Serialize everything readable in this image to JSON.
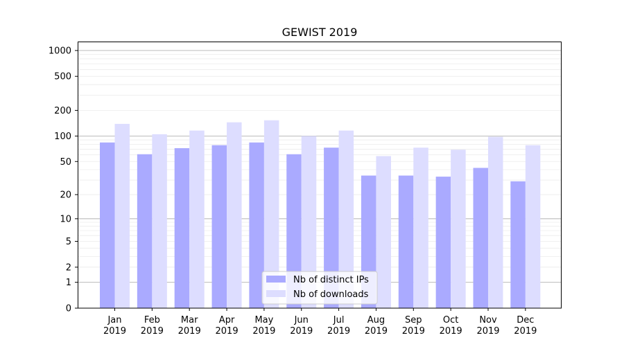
{
  "chart_data": {
    "type": "bar",
    "title": "GEWIST 2019",
    "xlabel": "",
    "ylabel": "",
    "yscale": "log(y+1)",
    "ylim": [
      0,
      1200
    ],
    "yticks": [
      0,
      1,
      2,
      5,
      10,
      20,
      50,
      100,
      200,
      500,
      1000
    ],
    "grid": true,
    "legend_position": "bottom-center",
    "categories": [
      "Jan\n2019",
      "Feb\n2019",
      "Mar\n2019",
      "Apr\n2019",
      "May\n2019",
      "Jun\n2019",
      "Jul\n2019",
      "Aug\n2019",
      "Sep\n2019",
      "Oct\n2019",
      "Nov\n2019",
      "Dec\n2019"
    ],
    "series": [
      {
        "name": "Nb of distinct IPs",
        "color": "#aaaaff",
        "values": [
          84,
          61,
          72,
          78,
          84,
          61,
          73,
          34,
          34,
          33,
          42,
          29
        ]
      },
      {
        "name": "Nb of downloads",
        "color": "#ddddff",
        "values": [
          139,
          105,
          116,
          145,
          153,
          100,
          116,
          58,
          73,
          69,
          98,
          78
        ]
      }
    ]
  }
}
